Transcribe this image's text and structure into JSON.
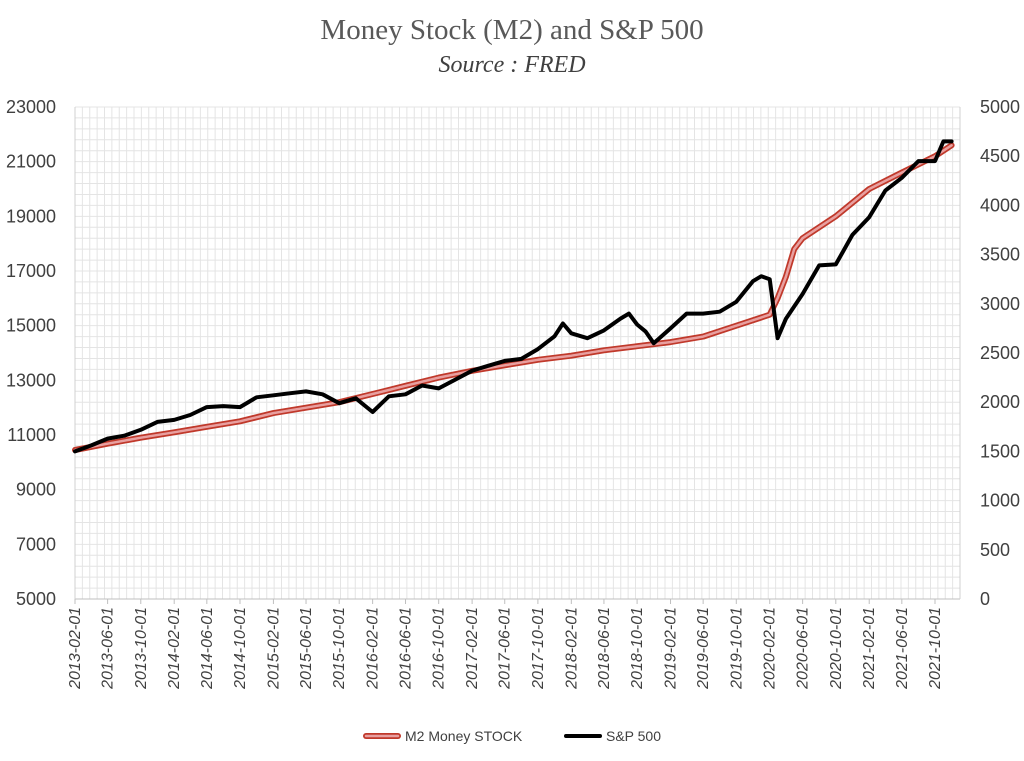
{
  "chart_data": {
    "type": "line",
    "title": "Money Stock (M2) and S&P 500",
    "subtitle": "Source : FRED",
    "xlabel": "",
    "ylabel_left": "",
    "ylabel_right": "",
    "ylim_left": [
      5000,
      23000
    ],
    "ylim_right": [
      0,
      5000
    ],
    "left_ticks": [
      "23000",
      "21000",
      "19000",
      "17000",
      "15000",
      "13000",
      "11000",
      "9000",
      "7000",
      "5000"
    ],
    "right_ticks": [
      "5000",
      "4500",
      "4000",
      "3500",
      "3000",
      "2500",
      "2000",
      "1500",
      "1000",
      "500",
      "0"
    ],
    "x_ticks": [
      "2013-02-01",
      "2013-06-01",
      "2013-10-01",
      "2014-02-01",
      "2014-06-01",
      "2014-10-01",
      "2015-02-01",
      "2015-06-01",
      "2015-10-01",
      "2016-02-01",
      "2016-06-01",
      "2016-10-01",
      "2017-02-01",
      "2017-06-01",
      "2017-10-01",
      "2018-02-01",
      "2018-06-01",
      "2018-10-01",
      "2019-02-01",
      "2019-06-01",
      "2019-10-01",
      "2020-02-01",
      "2020-06-01",
      "2020-10-01",
      "2021-02-01",
      "2021-06-01",
      "2021-10-01"
    ],
    "grid": true,
    "legend_position": "bottom",
    "series": [
      {
        "name": "M2 Money STOCK",
        "axis": "left",
        "color": "#e8a0a0",
        "x": [
          "2013-02-01",
          "2013-06-01",
          "2013-10-01",
          "2014-02-01",
          "2014-06-01",
          "2014-10-01",
          "2015-02-01",
          "2015-06-01",
          "2015-10-01",
          "2016-02-01",
          "2016-06-01",
          "2016-10-01",
          "2017-02-01",
          "2017-06-01",
          "2017-10-01",
          "2018-02-01",
          "2018-06-01",
          "2018-10-01",
          "2019-02-01",
          "2019-06-01",
          "2019-10-01",
          "2020-02-01",
          "2020-03-01",
          "2020-04-01",
          "2020-05-01",
          "2020-06-01",
          "2020-10-01",
          "2021-02-01",
          "2021-06-01",
          "2021-10-01",
          "2021-12-01"
        ],
        "values": [
          10450,
          10680,
          10900,
          11100,
          11300,
          11500,
          11800,
          12000,
          12200,
          12500,
          12800,
          13100,
          13350,
          13550,
          13750,
          13900,
          14100,
          14250,
          14400,
          14600,
          15000,
          15400,
          16000,
          16800,
          17800,
          18200,
          19000,
          20000,
          20600,
          21200,
          21600
        ]
      },
      {
        "name": "S&P 500",
        "axis": "right",
        "color": "#000000",
        "x": [
          "2013-02-01",
          "2013-04-01",
          "2013-06-01",
          "2013-08-01",
          "2013-10-01",
          "2013-12-01",
          "2014-02-01",
          "2014-04-01",
          "2014-06-01",
          "2014-08-01",
          "2014-10-01",
          "2014-12-01",
          "2015-02-01",
          "2015-04-01",
          "2015-06-01",
          "2015-08-01",
          "2015-10-01",
          "2015-12-01",
          "2016-02-01",
          "2016-04-01",
          "2016-06-01",
          "2016-08-01",
          "2016-10-01",
          "2016-12-01",
          "2017-02-01",
          "2017-04-01",
          "2017-06-01",
          "2017-08-01",
          "2017-10-01",
          "2017-12-01",
          "2018-01-01",
          "2018-02-01",
          "2018-04-01",
          "2018-06-01",
          "2018-08-01",
          "2018-09-01",
          "2018-10-01",
          "2018-11-01",
          "2018-12-01",
          "2019-02-01",
          "2019-04-01",
          "2019-06-01",
          "2019-08-01",
          "2019-10-01",
          "2019-12-01",
          "2020-01-01",
          "2020-02-01",
          "2020-03-01",
          "2020-04-01",
          "2020-06-01",
          "2020-08-01",
          "2020-10-01",
          "2020-12-01",
          "2021-02-01",
          "2021-04-01",
          "2021-06-01",
          "2021-08-01",
          "2021-10-01",
          "2021-11-01",
          "2021-12-01"
        ],
        "values": [
          1500,
          1560,
          1630,
          1660,
          1720,
          1800,
          1820,
          1870,
          1950,
          1960,
          1950,
          2050,
          2070,
          2090,
          2110,
          2080,
          1990,
          2040,
          1900,
          2060,
          2080,
          2170,
          2140,
          2230,
          2320,
          2370,
          2420,
          2440,
          2540,
          2670,
          2800,
          2700,
          2650,
          2730,
          2850,
          2900,
          2790,
          2720,
          2600,
          2750,
          2900,
          2900,
          2920,
          3020,
          3230,
          3280,
          3250,
          2650,
          2850,
          3100,
          3390,
          3400,
          3700,
          3880,
          4150,
          4280,
          4450,
          4450,
          4650,
          4650
        ]
      }
    ]
  }
}
